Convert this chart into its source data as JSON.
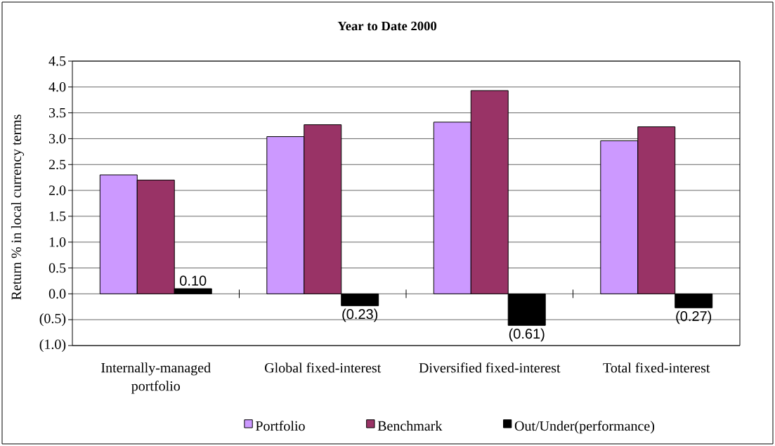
{
  "chart_data": {
    "type": "bar",
    "title": "Year to Date 2000",
    "ylabel": "Return % in local currency terms",
    "categories": [
      "Internally-managed portfolio",
      "Global fixed-interest",
      "Diversified fixed-interest",
      "Total fixed-interest"
    ],
    "series": [
      {
        "name": "Portfolio",
        "color": "#cc99ff",
        "values": [
          2.3,
          3.04,
          3.32,
          2.96
        ]
      },
      {
        "name": "Benchmark",
        "color": "#993366",
        "values": [
          2.2,
          3.27,
          3.93,
          3.23
        ]
      },
      {
        "name": "Out/Under(performance)",
        "color": "#000000",
        "values": [
          0.1,
          -0.23,
          -0.61,
          -0.27
        ],
        "value_labels": [
          "0.10",
          "(0.23)",
          "(0.61)",
          "(0.27)"
        ]
      }
    ],
    "ylim": [
      -1,
      4.5
    ],
    "yticks": [
      {
        "value": -1,
        "label": "(1.0)"
      },
      {
        "value": -0.5,
        "label": "(0.5)"
      },
      {
        "value": 0,
        "label": "0.0"
      },
      0.5,
      {
        "value": 1,
        "label": "1.0"
      },
      1.5,
      {
        "value": 2,
        "label": "2.0"
      },
      2.5,
      {
        "value": 3,
        "label": "3.0"
      },
      3.5,
      {
        "value": 4,
        "label": "4.0"
      },
      4.5
    ],
    "grid": "y",
    "legend": "bottom"
  }
}
